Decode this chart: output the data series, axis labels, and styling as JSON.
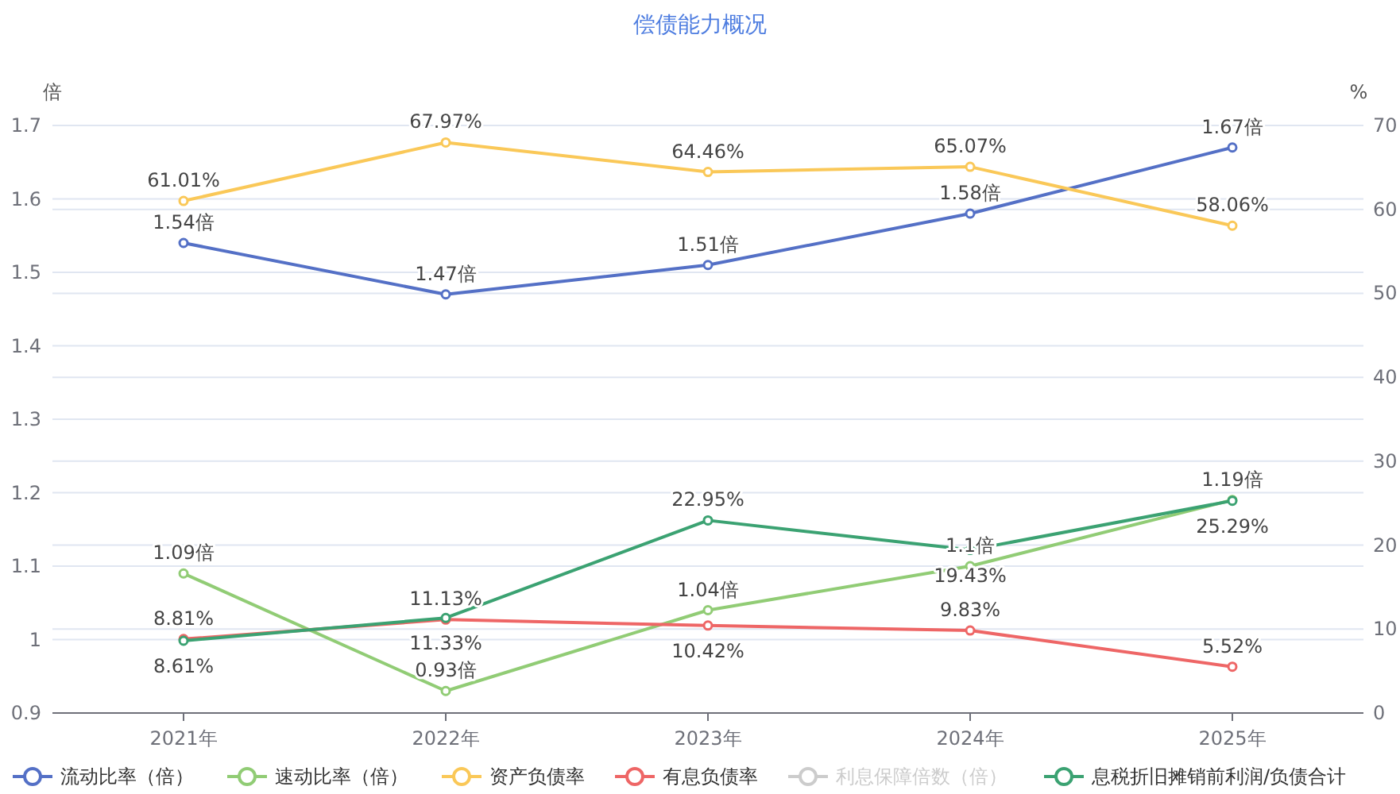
{
  "chart_data": {
    "type": "line",
    "title": "偿债能力概况",
    "ylabel": "倍",
    "y2label": "%",
    "categories": [
      "2021年",
      "2022年",
      "2023年",
      "2024年",
      "2025年"
    ],
    "ylim": [
      0.9,
      1.7
    ],
    "yticks": [
      0.9,
      1,
      1.1,
      1.2,
      1.3,
      1.4,
      1.5,
      1.6,
      1.7
    ],
    "y2lim": [
      0,
      70
    ],
    "y2ticks": [
      0,
      10,
      20,
      30,
      40,
      50,
      60,
      70
    ],
    "grid": "y",
    "legend": "bottom",
    "marker": "circle",
    "line_style": "solid",
    "series": [
      {
        "name": "流动比率（倍）",
        "color": "#5470c6",
        "values": [
          1.54,
          1.47,
          1.51,
          1.58,
          1.67
        ],
        "value_labels": [
          "1.54倍",
          "1.47倍",
          "1.51倍",
          "1.58倍",
          "1.67倍"
        ]
      },
      {
        "name": "速动比率（倍）",
        "color": "#91cc75",
        "values": [
          1.09,
          0.93,
          1.04,
          1.1,
          1.19
        ],
        "value_labels": [
          "1.09倍",
          "0.93倍",
          "1.04倍",
          "1.1倍",
          "1.19倍"
        ]
      },
      {
        "name": "资产负债率",
        "color": "#fac858",
        "axis": "y2",
        "values": [
          61.01,
          67.97,
          64.46,
          65.07,
          58.06
        ],
        "value_labels": [
          "61.01%",
          "67.97%",
          "64.46%",
          "65.07%",
          "58.06%"
        ]
      },
      {
        "name": "有息负债率",
        "color": "#ee6666",
        "axis": "y2",
        "values": [
          8.81,
          11.13,
          10.42,
          9.83,
          5.52
        ],
        "value_labels": [
          "8.81%",
          "11.13%",
          "10.42%",
          "9.83%",
          "5.52%"
        ]
      },
      {
        "name": "利息保障倍数（倍）",
        "color": "#cccccc",
        "values": [
          null,
          null,
          null,
          null,
          null
        ]
      },
      {
        "name": "息税折旧摊销前利润/负债合计",
        "color": "#3ba272",
        "axis": "y2",
        "values": [
          8.61,
          11.33,
          22.95,
          19.43,
          25.29
        ],
        "value_labels": [
          "8.61%",
          "11.33%",
          "22.95%",
          "19.43%",
          "25.29%"
        ]
      }
    ]
  }
}
